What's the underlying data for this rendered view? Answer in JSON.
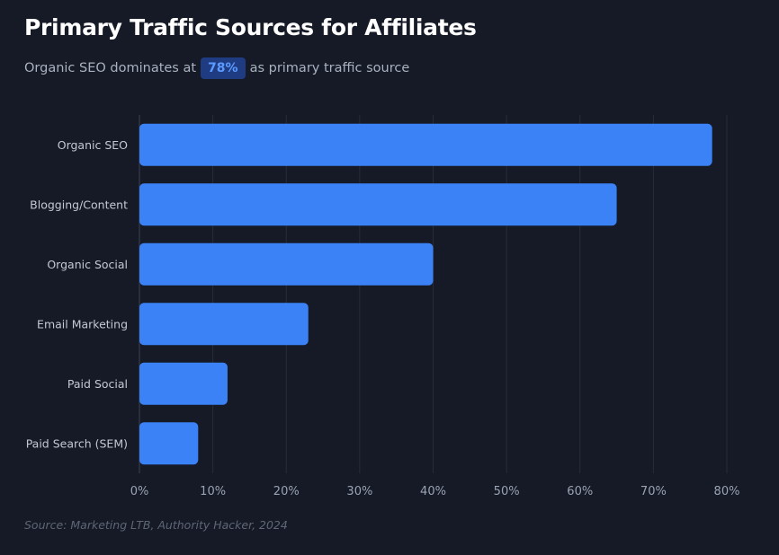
{
  "header": {
    "title": "Primary Traffic Sources for Affiliates",
    "subtitle_before": "Organic SEO dominates at",
    "subtitle_highlight": "78%",
    "subtitle_after": "as primary traffic source"
  },
  "footer": {
    "source": "Source: Marketing LTB, Authority Hacker, 2024"
  },
  "colors": {
    "background": "#151a26",
    "bar": "#3b82f6",
    "grid": "#262c3a",
    "badge_bg": "#1f3b82",
    "badge_text": "#5b9bff"
  },
  "chart_data": {
    "type": "bar",
    "orientation": "horizontal",
    "title": "Primary Traffic Sources for Affiliates",
    "categories": [
      "Organic SEO",
      "Blogging/Content",
      "Organic Social",
      "Email Marketing",
      "Paid Social",
      "Paid Search (SEM)"
    ],
    "values": [
      78,
      65,
      40,
      23,
      12,
      8
    ],
    "xlabel": "",
    "ylabel": "",
    "xlim": [
      0,
      80
    ],
    "x_ticks": [
      "0%",
      "10%",
      "20%",
      "30%",
      "40%",
      "50%",
      "60%",
      "70%",
      "80%"
    ],
    "grid": "vertical",
    "legend": "none"
  }
}
